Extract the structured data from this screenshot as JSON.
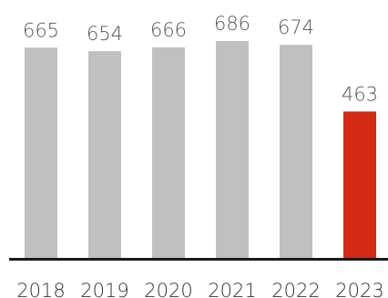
{
  "chart_data": {
    "type": "bar",
    "categories": [
      "2018",
      "2019",
      "2020",
      "2021",
      "2022",
      "2023"
    ],
    "values": [
      665,
      654,
      666,
      686,
      674,
      463
    ],
    "data_labels": [
      "665",
      "654",
      "666",
      "686",
      "674",
      "463"
    ],
    "highlight_index": 5,
    "ylim": [
      0,
      686
    ],
    "grid": false,
    "legend": "none",
    "title": "",
    "xlabel": "",
    "ylabel": ""
  },
  "colors": {
    "bar": "#c0c0c0",
    "highlight": "#d42a14",
    "axis": "#1a1a1a",
    "value_text": "#555555",
    "tick_text": "#333333"
  }
}
